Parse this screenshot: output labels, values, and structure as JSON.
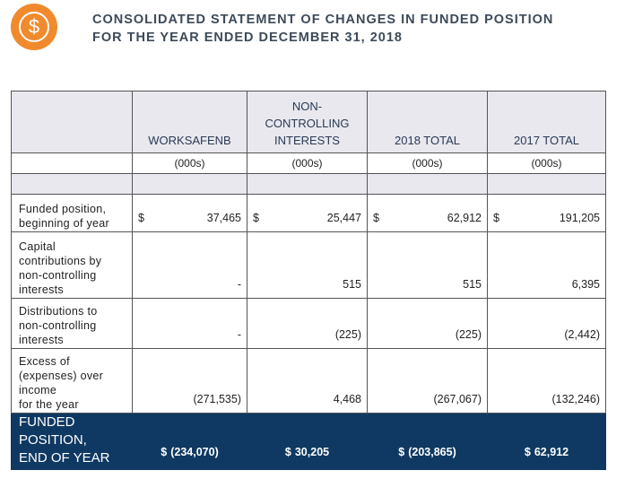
{
  "header": {
    "icon": "$",
    "title_lines": [
      "CONSOLIDATED STATEMENT OF CHANGES IN FUNDED POSITION",
      "FOR THE YEAR ENDED DECEMBER 31, 2018"
    ]
  },
  "table": {
    "columns": [
      [
        "WORKSAFENB"
      ],
      [
        "NON-",
        "CONTROLLING",
        "INTERESTS"
      ],
      [
        "2018 TOTAL"
      ],
      [
        "2017 TOTAL"
      ]
    ],
    "units": [
      "(000s)",
      "(000s)",
      "(000s)",
      "(000s)"
    ],
    "rows": [
      {
        "label": [
          "Funded position,",
          "beginning of year"
        ],
        "cells": [
          {
            "currency": "$",
            "amount": "37,465"
          },
          {
            "currency": "$",
            "amount": "25,447"
          },
          {
            "currency": "$",
            "amount": "62,912"
          },
          {
            "currency": "$",
            "amount": "191,205"
          }
        ]
      },
      {
        "label": [
          "Capital",
          "contributions by",
          "non-controlling",
          "interests"
        ],
        "cells": [
          {
            "amount": "-"
          },
          {
            "amount": "515"
          },
          {
            "amount": "515"
          },
          {
            "amount": "6,395"
          }
        ]
      },
      {
        "label": [
          "Distributions to",
          "non-controlling",
          "interests"
        ],
        "cells": [
          {
            "amount": "-"
          },
          {
            "amount": "(225)"
          },
          {
            "amount": "(225)"
          },
          {
            "amount": "(2,442)"
          }
        ]
      },
      {
        "label": [
          "Excess of",
          "(expenses) over",
          "income",
          "for the year"
        ],
        "cells": [
          {
            "amount": "(271,535)"
          },
          {
            "amount": "4,468"
          },
          {
            "amount": "(267,067)"
          },
          {
            "amount": "(132,246)"
          }
        ]
      }
    ],
    "total": {
      "label": [
        "FUNDED",
        "POSITION,",
        "END OF YEAR"
      ],
      "cells": [
        {
          "currency": "$",
          "amount": "(234,070)"
        },
        {
          "currency": "$",
          "amount": "30,205"
        },
        {
          "currency": "$",
          "amount": "(203,865)"
        },
        {
          "currency": "$",
          "amount": "62,912"
        }
      ]
    }
  }
}
